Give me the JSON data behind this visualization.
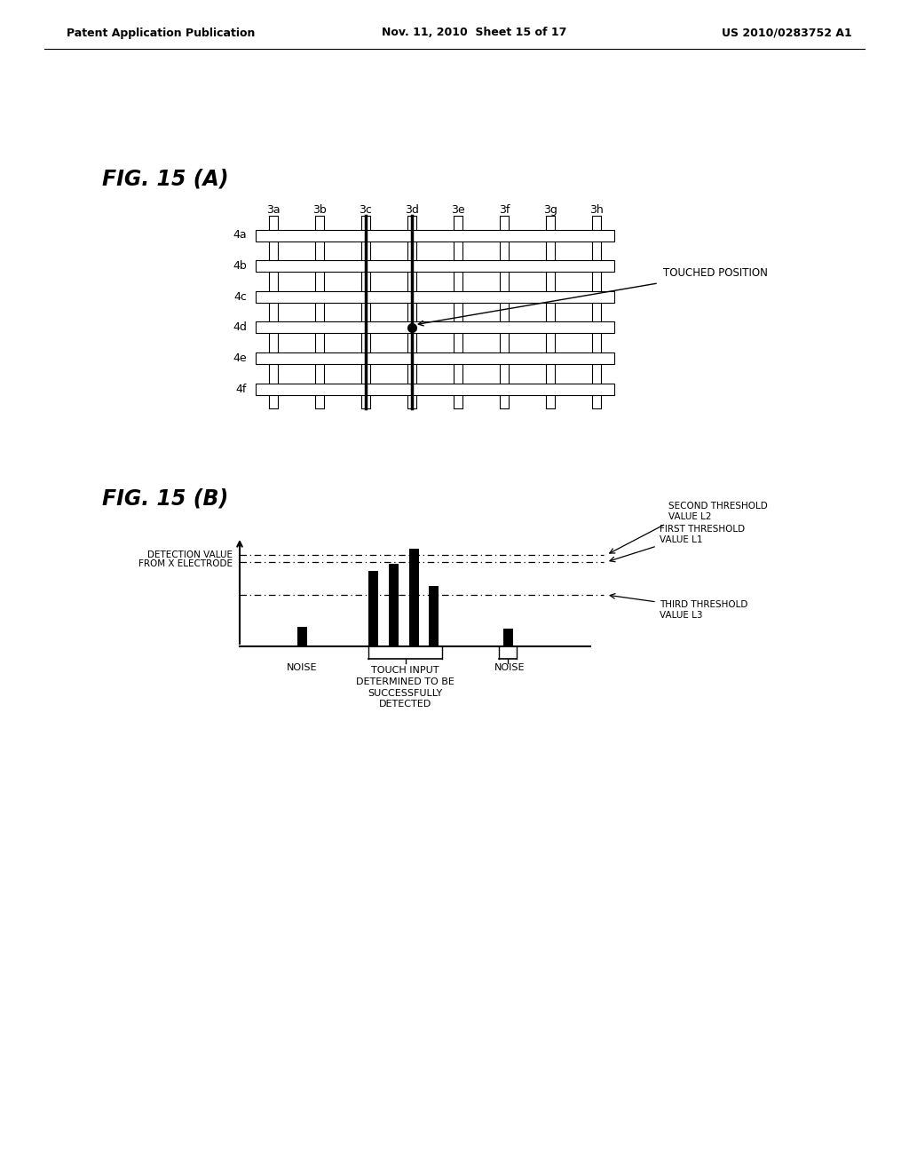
{
  "header_left": "Patent Application Publication",
  "header_mid": "Nov. 11, 2010  Sheet 15 of 17",
  "header_right": "US 2010/0283752 A1",
  "fig_a_label": "FIG. 15 (A)",
  "fig_b_label": "FIG. 15 (B)",
  "grid_x_labels": [
    "3a",
    "3b",
    "3c",
    "3d",
    "3e",
    "3f",
    "3g",
    "3h"
  ],
  "grid_y_labels": [
    "4a",
    "4b",
    "4c",
    "4d",
    "4e",
    "4f"
  ],
  "touched_position_label": "TOUCHED POSITION",
  "touched_col": 3,
  "touched_row": 3,
  "background_color": "#ffffff"
}
